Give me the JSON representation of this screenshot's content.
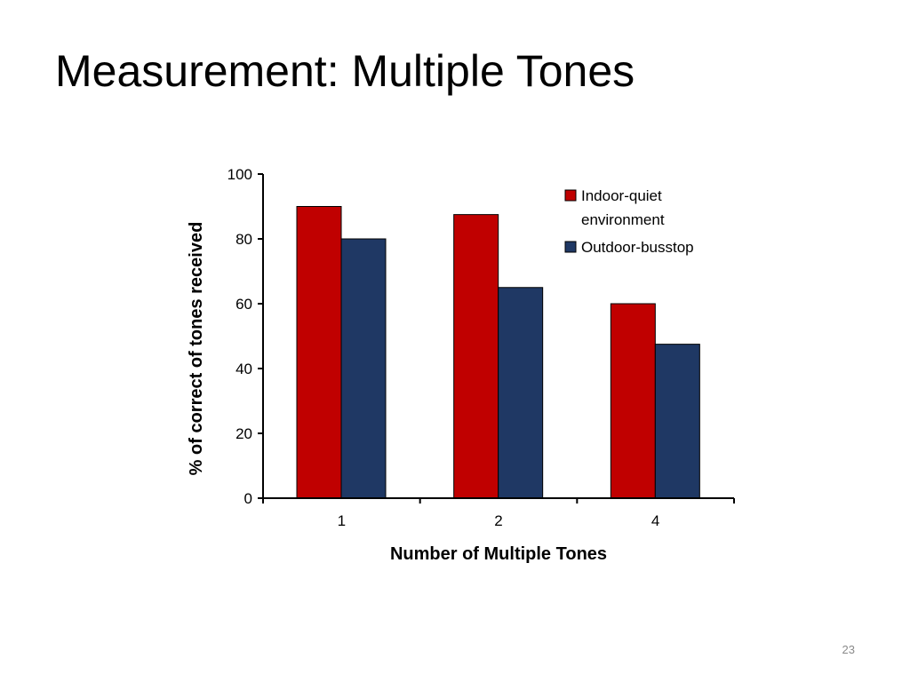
{
  "slide": {
    "title": "Measurement: Multiple Tones",
    "page_number": "23"
  },
  "chart_data": {
    "type": "bar",
    "title": "",
    "xlabel": "Number of Multiple Tones",
    "ylabel": "% of correct of tones received",
    "categories": [
      "1",
      "2",
      "4"
    ],
    "ylim": [
      0,
      100
    ],
    "yticks": [
      0,
      20,
      40,
      60,
      80,
      100
    ],
    "grid": false,
    "legend_position": "top-right",
    "series": [
      {
        "name": "Indoor-quiet environment",
        "legend_lines": [
          "Indoor-quiet",
          "environment"
        ],
        "color": "#c00000",
        "values": [
          90,
          87.5,
          60
        ]
      },
      {
        "name": "Outdoor-busstop",
        "legend_lines": [
          "Outdoor-busstop"
        ],
        "color": "#1f3864",
        "values": [
          80,
          65,
          47.5
        ]
      }
    ]
  }
}
